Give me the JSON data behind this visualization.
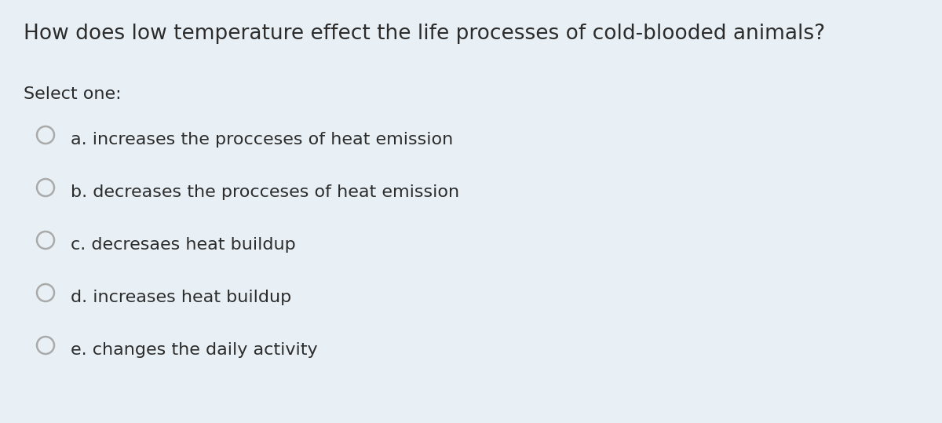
{
  "background_color": "#e8f0f5",
  "title": "How does low temperature effect the life processes of cold-blooded animals?",
  "select_label": "Select one:",
  "options": [
    "a. increases the procceses of heat emission",
    "b. decreases the procceses of heat emission",
    "c. decresaes heat buildup",
    "d. increases heat buildup",
    "e. changes the daily activity"
  ],
  "title_fontsize": 19,
  "select_fontsize": 16,
  "option_fontsize": 16,
  "text_color": "#2c2c2c",
  "circle_edge_color": "#aaaaaa",
  "fig_width": 12.0,
  "fig_height": 5.39
}
